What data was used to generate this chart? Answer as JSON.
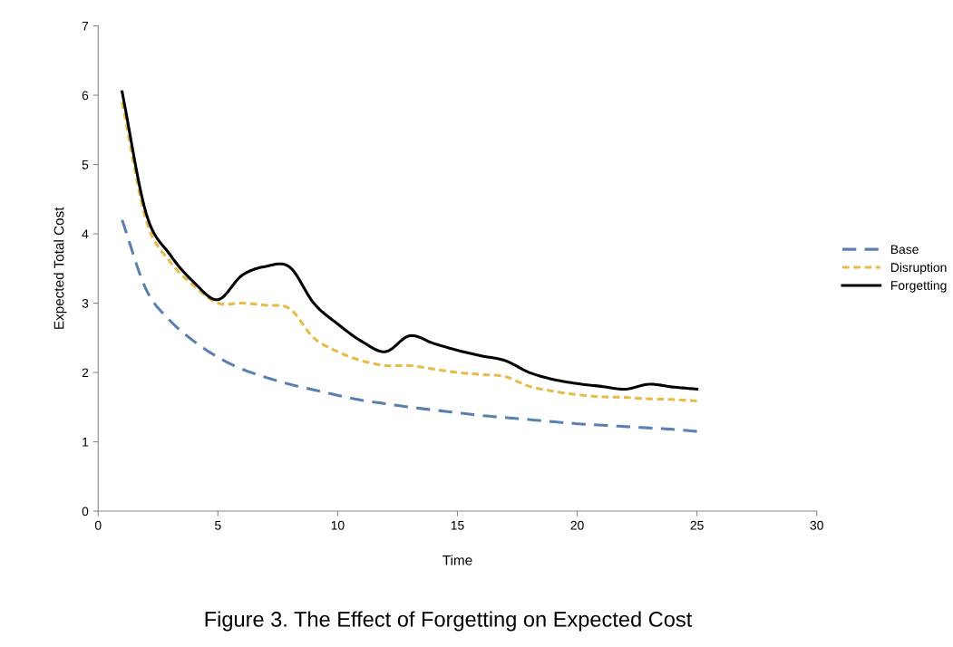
{
  "chart_data": {
    "type": "line",
    "xlabel": "Time",
    "ylabel": "Expected Total Cost",
    "annotations": [
      "Figure 3. The Effect of Forgetting on Expected Cost"
    ],
    "x": [
      1,
      2,
      3,
      4,
      5,
      6,
      7,
      8,
      9,
      10,
      11,
      12,
      13,
      14,
      15,
      16,
      17,
      18,
      19,
      20,
      21,
      22,
      23,
      24,
      25
    ],
    "series": [
      {
        "name": "Base",
        "color": "#5a80b2",
        "line_style": "dashed",
        "values": [
          4.2,
          3.2,
          2.75,
          2.45,
          2.22,
          2.05,
          1.93,
          1.83,
          1.75,
          1.67,
          1.6,
          1.55,
          1.5,
          1.46,
          1.42,
          1.38,
          1.35,
          1.32,
          1.29,
          1.26,
          1.24,
          1.22,
          1.2,
          1.18,
          1.15
        ]
      },
      {
        "name": "Disruption",
        "color": "#e8bb48",
        "line_style": "dotted",
        "values": [
          5.9,
          4.2,
          3.6,
          3.25,
          3.0,
          3.0,
          2.97,
          2.92,
          2.5,
          2.3,
          2.17,
          2.1,
          2.1,
          2.05,
          2.0,
          1.97,
          1.94,
          1.8,
          1.73,
          1.68,
          1.65,
          1.64,
          1.62,
          1.61,
          1.59
        ]
      },
      {
        "name": "Forgetting",
        "color": "#000000",
        "line_style": "solid",
        "values": [
          6.05,
          4.3,
          3.7,
          3.3,
          3.05,
          3.4,
          3.53,
          3.52,
          3.0,
          2.7,
          2.45,
          2.3,
          2.53,
          2.42,
          2.32,
          2.24,
          2.17,
          2.0,
          1.9,
          1.84,
          1.8,
          1.76,
          1.83,
          1.79,
          1.76
        ]
      }
    ],
    "xlim": [
      0,
      30
    ],
    "xticks": [
      0,
      5,
      10,
      15,
      20,
      25,
      30
    ],
    "ylim": [
      0,
      7
    ],
    "yticks": [
      0,
      1,
      2,
      3,
      4,
      5,
      6,
      7
    ],
    "grid": false,
    "legend": "right",
    "marker": "none"
  }
}
